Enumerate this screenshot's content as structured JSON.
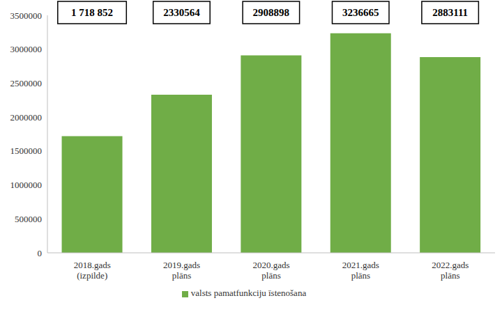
{
  "chart_data": {
    "type": "bar",
    "categories": [
      "2018.gads (izpilde)",
      "2019.gads plāns",
      "2020.gads plāns",
      "2021.gads plāns",
      "2022.gads plāns"
    ],
    "series": [
      {
        "name": "valsts pamatfunkciju īstenošana",
        "color": "#70ad47",
        "values": [
          1718852,
          2330564,
          2908898,
          3236665,
          2883111
        ],
        "value_labels": [
          "1 718 852",
          "2330564",
          "2908898",
          "3236665",
          "2883111"
        ]
      }
    ],
    "ylim": [
      0,
      3500000
    ],
    "yticks": [
      0,
      500000,
      1000000,
      1500000,
      2000000,
      2500000,
      3000000,
      3500000
    ],
    "grid": false,
    "legend": "bottom",
    "data_labels": true
  }
}
